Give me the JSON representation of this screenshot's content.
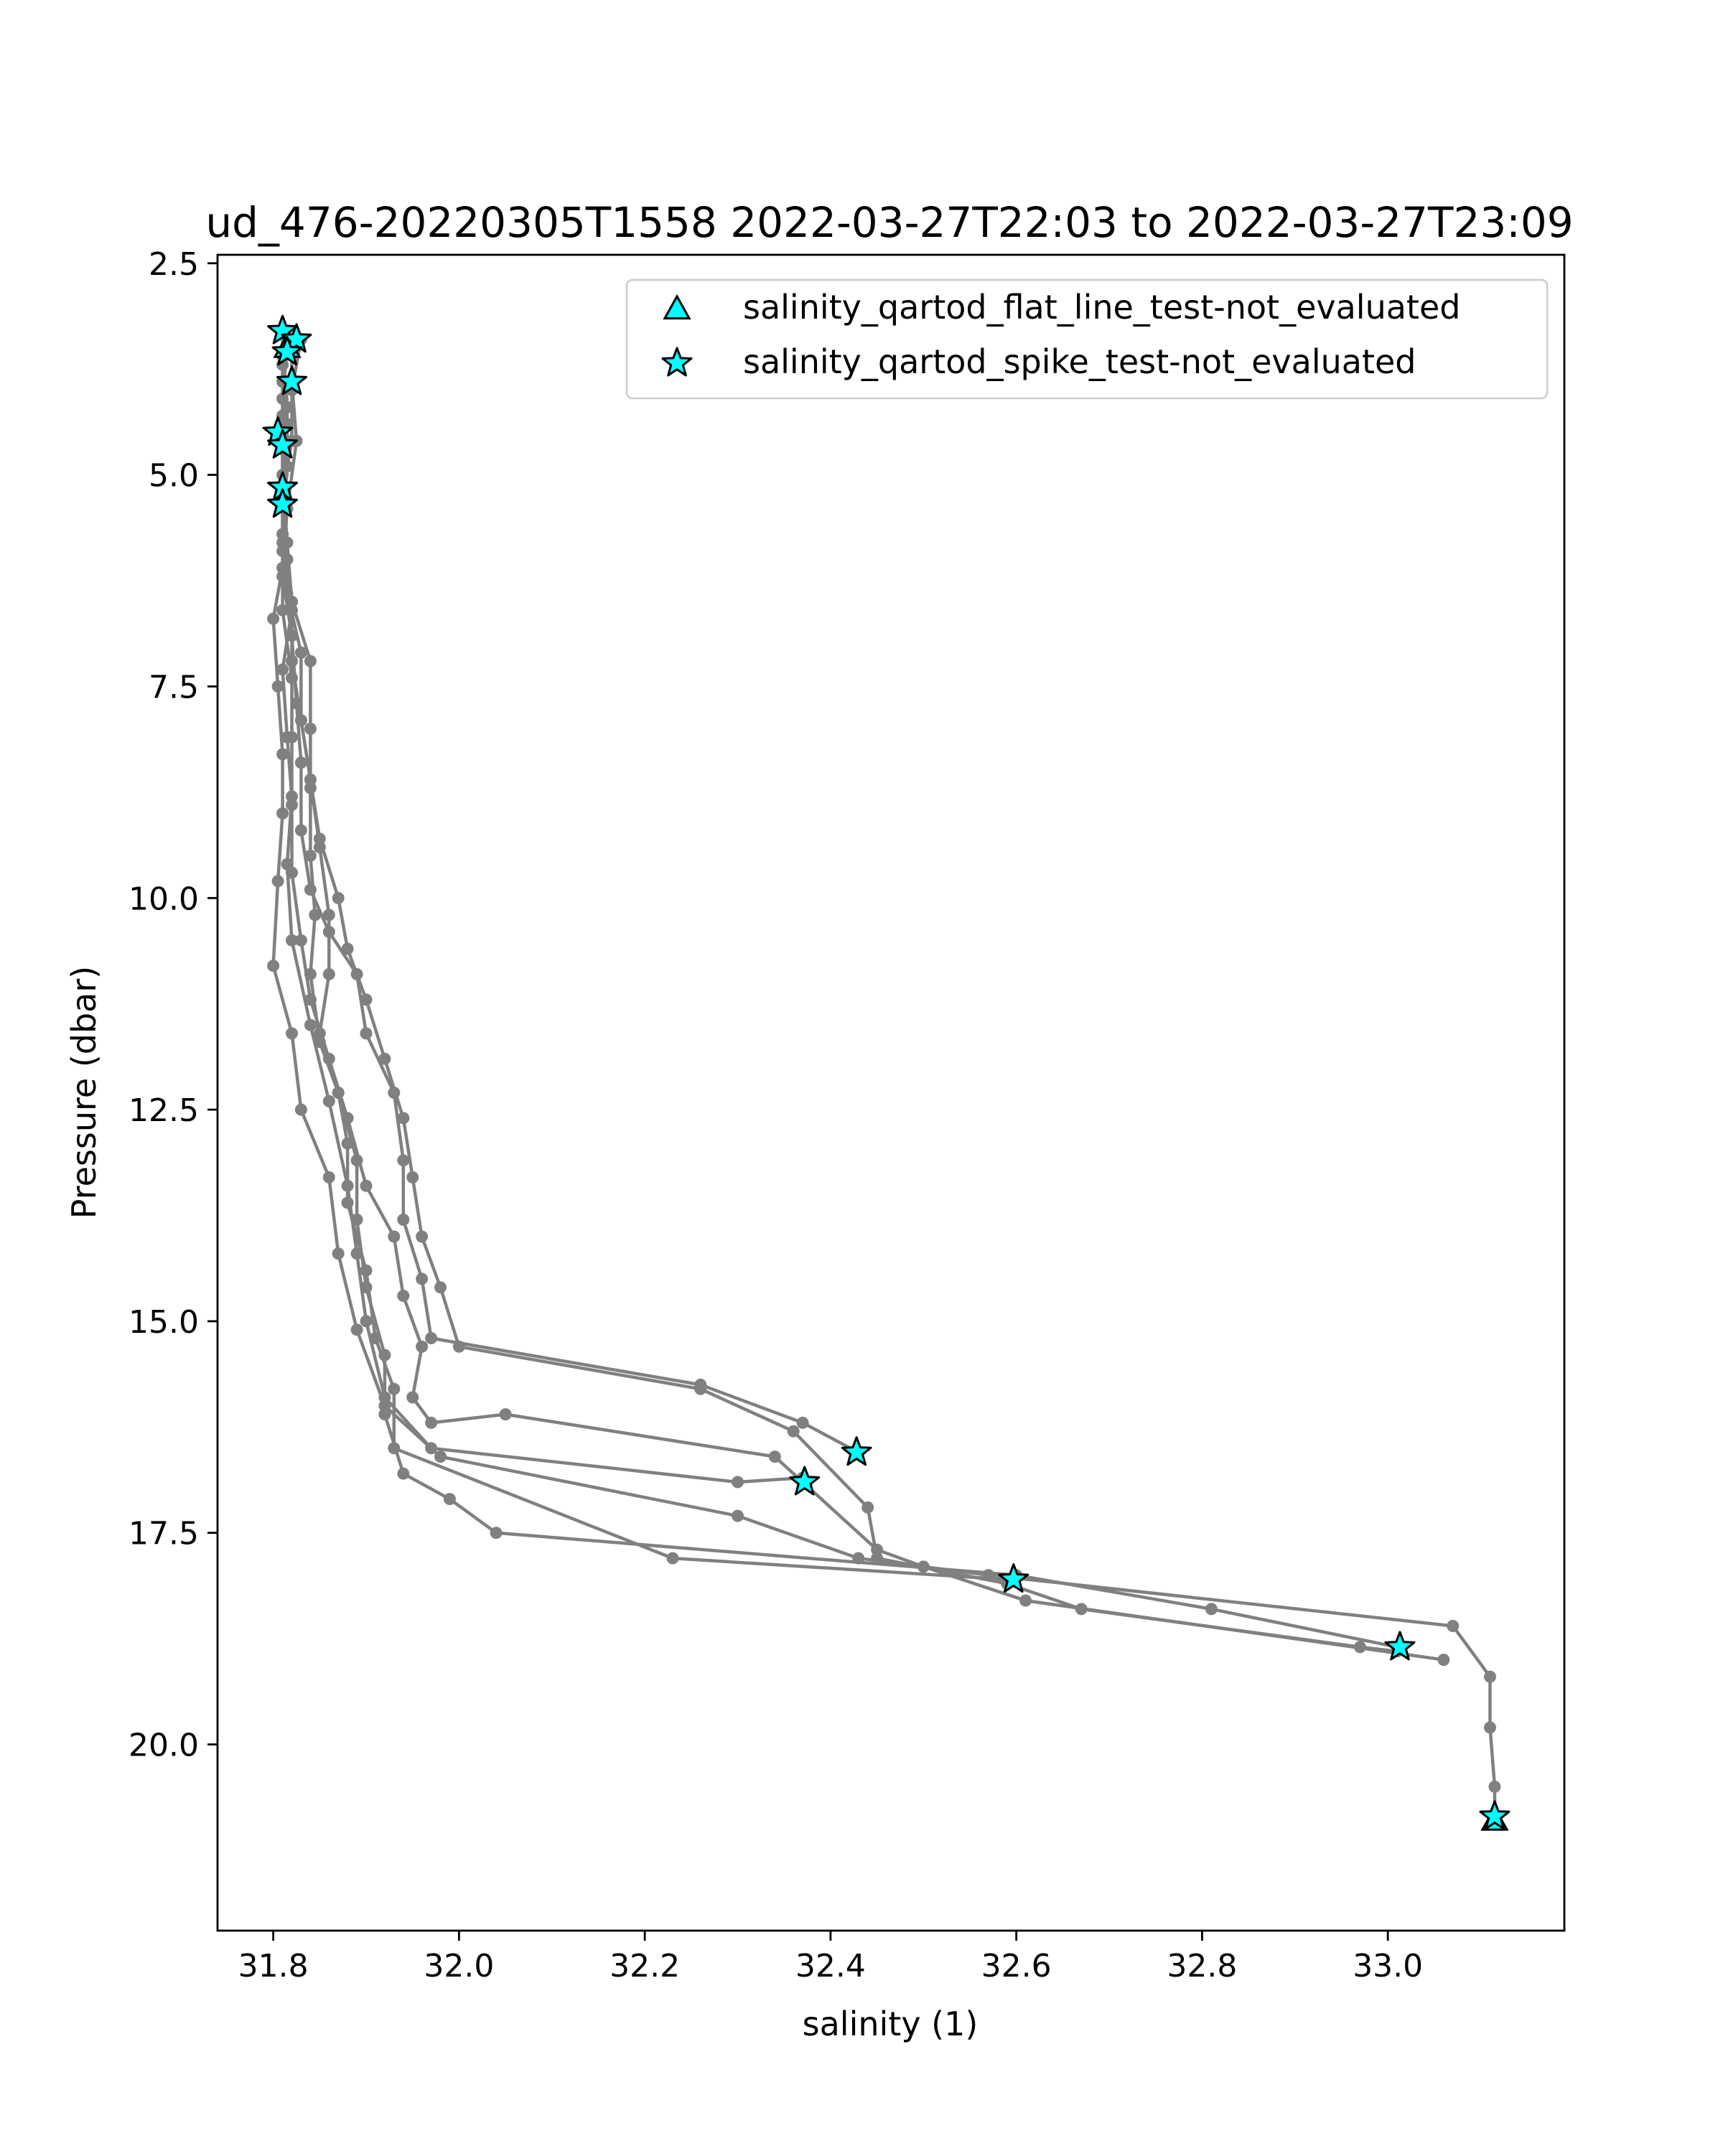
{
  "chart_data": {
    "type": "scatter",
    "title": "ud_476-20220305T1558 2022-03-27T22:03 to 2022-03-27T23:09",
    "xlabel": "salinity (1)",
    "ylabel": "Pressure (dbar)",
    "xlim": [
      31.74,
      33.19
    ],
    "ylim": [
      22.2,
      2.4
    ],
    "y_inverted": true,
    "x_ticks": [
      "31.8",
      "32.0",
      "32.2",
      "32.4",
      "32.6",
      "32.8",
      "33.0"
    ],
    "y_ticks": [
      "2.5",
      "5.0",
      "7.5",
      "10.0",
      "12.5",
      "15.0",
      "17.5",
      "20.0"
    ],
    "grid": false,
    "legend_position": "top-right",
    "colors": {
      "profile": "#808080",
      "marker_fill": "#00ffff",
      "marker_edge": "#000000"
    },
    "series": [
      {
        "kind": "profile-lines",
        "profiles": [
          [
            [
              31.81,
              3.3
            ],
            [
              31.81,
              3.7
            ],
            [
              31.815,
              4.4
            ],
            [
              31.81,
              5.2
            ],
            [
              31.815,
              6.0
            ],
            [
              31.82,
              6.6
            ],
            [
              31.81,
              7.3
            ],
            [
              31.815,
              8.1
            ],
            [
              31.82,
              8.8
            ],
            [
              31.815,
              9.6
            ],
            [
              31.82,
              10.5
            ],
            [
              31.84,
              11.5
            ],
            [
              31.86,
              12.4
            ],
            [
              31.88,
              13.4
            ],
            [
              31.89,
              14.2
            ],
            [
              31.9,
              15.0
            ],
            [
              31.92,
              15.9
            ],
            [
              31.97,
              16.5
            ],
            [
              32.3,
              16.9
            ],
            [
              32.37,
              16.85
            ]
          ],
          [
            [
              31.82,
              3.4
            ],
            [
              31.82,
              3.9
            ],
            [
              31.825,
              4.6
            ],
            [
              31.815,
              5.4
            ],
            [
              31.81,
              6.2
            ],
            [
              31.82,
              6.9
            ],
            [
              31.825,
              7.7
            ],
            [
              31.83,
              8.4
            ],
            [
              31.83,
              9.2
            ],
            [
              31.84,
              9.9
            ],
            [
              31.86,
              10.4
            ],
            [
              31.89,
              10.9
            ],
            [
              31.9,
              11.6
            ],
            [
              31.93,
              12.3
            ],
            [
              31.94,
              13.1
            ],
            [
              31.94,
              13.8
            ],
            [
              31.96,
              14.5
            ],
            [
              31.97,
              15.2
            ],
            [
              32.26,
              15.75
            ],
            [
              32.37,
              16.2
            ],
            [
              32.43,
              16.55
            ]
          ],
          [
            [
              31.815,
              3.5
            ],
            [
              31.81,
              4.1
            ],
            [
              31.81,
              4.7
            ],
            [
              31.81,
              5.3
            ],
            [
              31.81,
              6.1
            ],
            [
              31.8,
              6.7
            ],
            [
              31.805,
              7.5
            ],
            [
              31.81,
              8.3
            ],
            [
              31.81,
              9.0
            ],
            [
              31.805,
              9.8
            ],
            [
              31.8,
              10.8
            ],
            [
              31.82,
              11.6
            ],
            [
              31.83,
              12.5
            ],
            [
              31.86,
              13.3
            ],
            [
              31.87,
              14.2
            ],
            [
              31.89,
              15.1
            ],
            [
              31.92,
              16.0
            ],
            [
              31.98,
              16.6
            ],
            [
              32.3,
              17.3
            ],
            [
              32.43,
              17.8
            ],
            [
              32.57,
              18.0
            ],
            [
              33.07,
              18.6
            ],
            [
              33.11,
              19.2
            ],
            [
              33.11,
              19.8
            ],
            [
              33.115,
              20.5
            ],
            [
              33.115,
              20.9
            ]
          ],
          [
            [
              31.81,
              3.6
            ],
            [
              31.815,
              4.2
            ],
            [
              31.815,
              4.9
            ],
            [
              31.81,
              5.7
            ],
            [
              31.815,
              6.4
            ],
            [
              31.83,
              7.1
            ],
            [
              31.83,
              7.9
            ],
            [
              31.84,
              8.6
            ],
            [
              31.85,
              9.4
            ],
            [
              31.86,
              10.2
            ],
            [
              31.86,
              10.9
            ],
            [
              31.85,
              11.6
            ],
            [
              31.87,
              12.3
            ],
            [
              31.89,
              13.1
            ],
            [
              31.89,
              13.8
            ],
            [
              31.9,
              14.6
            ],
            [
              31.92,
              15.4
            ],
            [
              31.92,
              16.1
            ],
            [
              31.94,
              16.8
            ],
            [
              31.99,
              17.1
            ],
            [
              32.04,
              17.5
            ],
            [
              32.6,
              18.0
            ],
            [
              32.81,
              18.4
            ],
            [
              33.01,
              18.85
            ]
          ],
          [
            [
              31.83,
              3.4
            ],
            [
              31.82,
              4.0
            ],
            [
              31.82,
              4.6
            ],
            [
              31.81,
              5.2
            ],
            [
              31.81,
              5.9
            ],
            [
              31.81,
              6.6
            ],
            [
              31.82,
              7.4
            ],
            [
              31.82,
              8.1
            ],
            [
              31.82,
              8.9
            ],
            [
              31.82,
              9.7
            ],
            [
              31.83,
              10.5
            ],
            [
              31.84,
              11.2
            ],
            [
              31.86,
              11.9
            ],
            [
              31.88,
              12.6
            ],
            [
              31.9,
              13.4
            ],
            [
              31.93,
              14.0
            ],
            [
              31.94,
              14.7
            ],
            [
              31.96,
              15.3
            ],
            [
              31.95,
              15.9
            ],
            [
              31.97,
              16.2
            ],
            [
              32.05,
              16.1
            ],
            [
              32.34,
              16.6
            ],
            [
              32.37,
              16.9
            ],
            [
              32.45,
              17.7
            ],
            [
              32.5,
              17.9
            ],
            [
              32.61,
              18.3
            ],
            [
              33.06,
              19.0
            ]
          ],
          [
            [
              31.81,
              3.7
            ],
            [
              31.81,
              4.3
            ],
            [
              31.81,
              5.0
            ],
            [
              31.815,
              5.8
            ],
            [
              31.82,
              6.5
            ],
            [
              31.84,
              7.2
            ],
            [
              31.84,
              8.0
            ],
            [
              31.84,
              8.7
            ],
            [
              31.84,
              9.5
            ],
            [
              31.845,
              10.2
            ],
            [
              31.84,
              10.9
            ],
            [
              31.85,
              11.7
            ],
            [
              31.87,
              12.3
            ],
            [
              31.88,
              12.9
            ],
            [
              31.88,
              13.6
            ],
            [
              31.9,
              14.4
            ],
            [
              31.91,
              15.2
            ],
            [
              31.93,
              15.8
            ],
            [
              31.93,
              16.5
            ],
            [
              32.23,
              17.8
            ],
            [
              32.59,
              18.05
            ]
          ],
          [
            [
              31.81,
              3.3
            ],
            [
              31.81,
              3.9
            ],
            [
              31.81,
              4.5
            ],
            [
              31.81,
              5.2
            ],
            [
              31.81,
              5.8
            ],
            [
              31.82,
              6.5
            ],
            [
              31.82,
              7.2
            ],
            [
              31.83,
              7.9
            ],
            [
              31.84,
              8.6
            ],
            [
              31.85,
              9.3
            ],
            [
              31.87,
              10.0
            ],
            [
              31.88,
              10.6
            ],
            [
              31.9,
              11.2
            ],
            [
              31.92,
              11.9
            ],
            [
              31.94,
              12.6
            ],
            [
              31.95,
              13.3
            ],
            [
              31.96,
              14.0
            ],
            [
              31.98,
              14.6
            ],
            [
              32.0,
              15.3
            ],
            [
              32.26,
              15.8
            ],
            [
              32.36,
              16.3
            ],
            [
              32.44,
              17.2
            ],
            [
              32.45,
              17.8
            ],
            [
              32.59,
              18.1
            ],
            [
              32.67,
              18.4
            ],
            [
              32.97,
              18.85
            ],
            [
              33.01,
              18.9
            ]
          ]
        ]
      },
      {
        "name": "salinity_qartod_flat_line_test-not_evaluated",
        "marker": "triangle",
        "points": [
          [
            31.815,
            3.5
          ],
          [
            33.115,
            20.9
          ]
        ]
      },
      {
        "name": "salinity_qartod_spike_test-not_evaluated",
        "marker": "star",
        "points": [
          [
            31.81,
            3.3
          ],
          [
            31.825,
            3.4
          ],
          [
            31.815,
            3.55
          ],
          [
            31.82,
            3.9
          ],
          [
            31.805,
            4.5
          ],
          [
            31.81,
            4.65
          ],
          [
            31.81,
            5.15
          ],
          [
            31.81,
            5.35
          ],
          [
            32.372,
            16.9
          ],
          [
            32.428,
            16.55
          ],
          [
            32.597,
            18.05
          ],
          [
            33.013,
            18.85
          ],
          [
            33.115,
            20.85
          ]
        ]
      }
    ]
  }
}
